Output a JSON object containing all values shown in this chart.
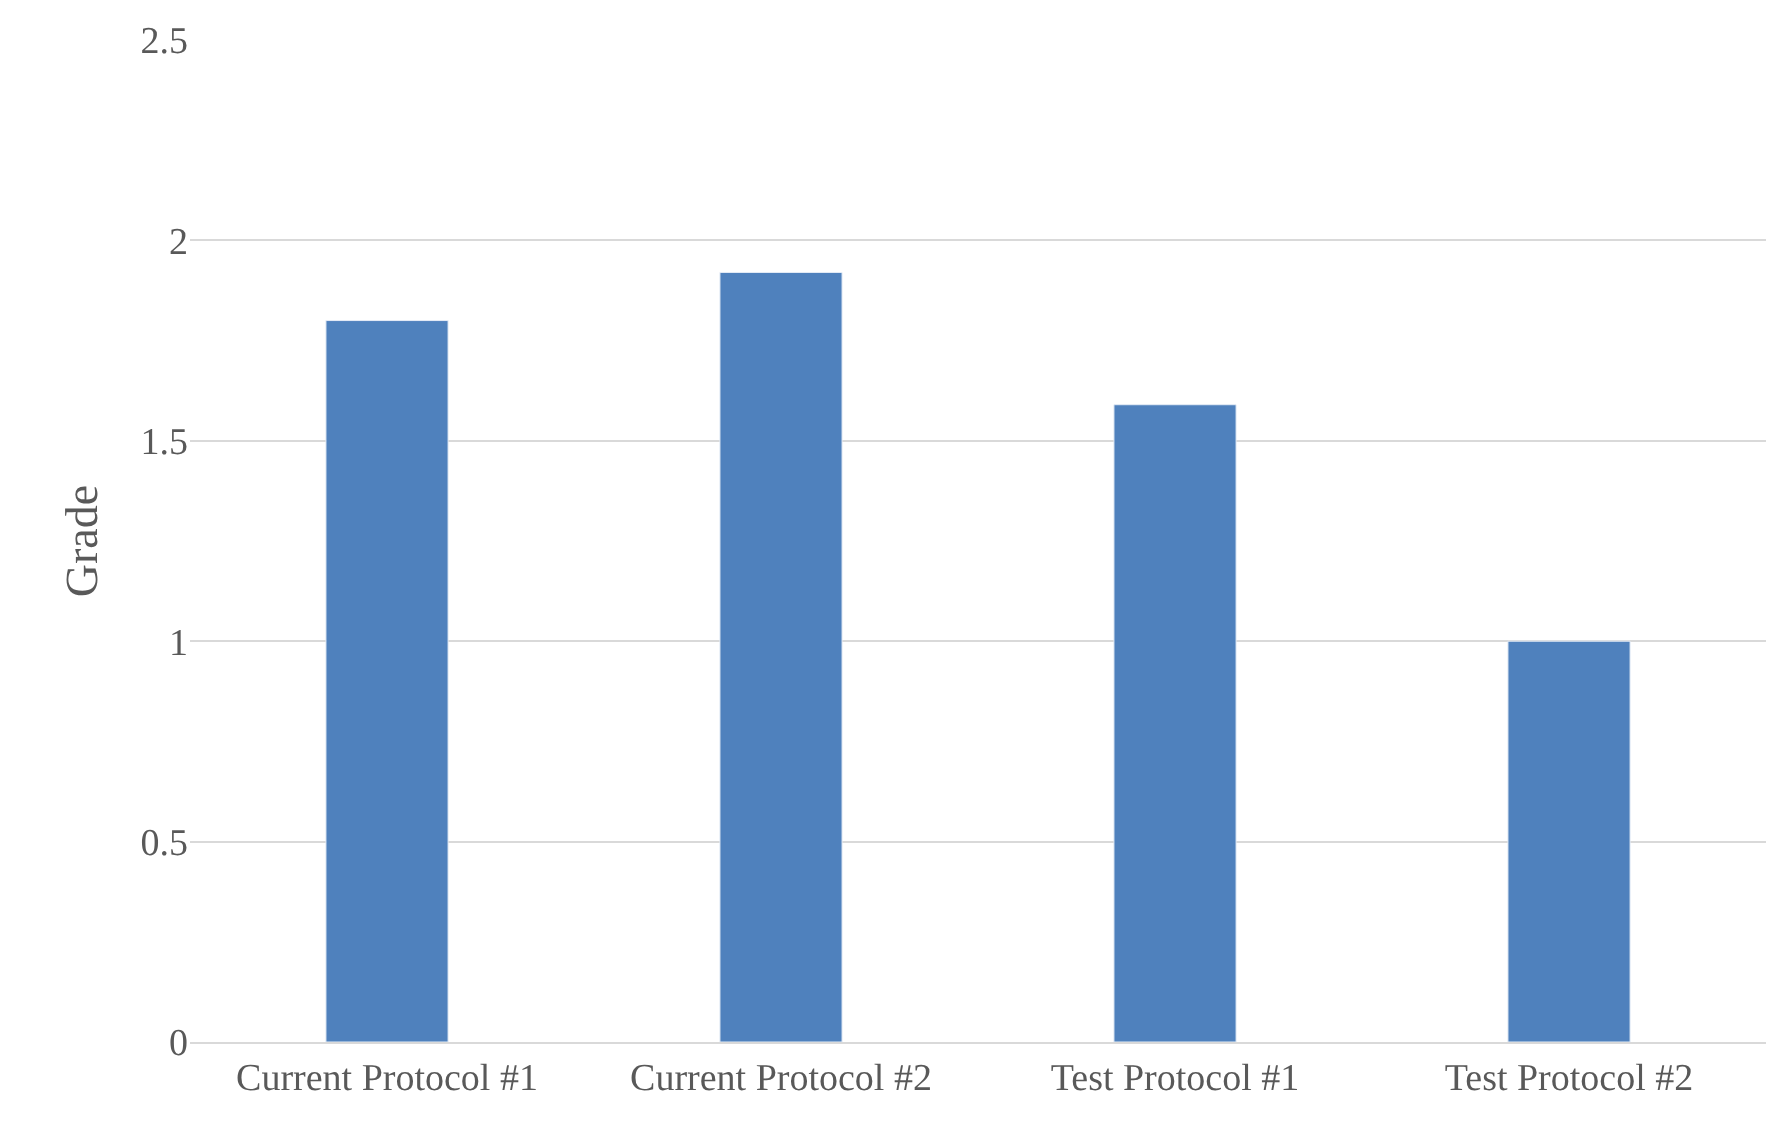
{
  "chart_data": {
    "type": "bar",
    "ylabel": "Grade",
    "categories": [
      "Current Protocol #1",
      "Current Protocol #2",
      "Test Protocol #1",
      "Test Protocol #2"
    ],
    "values": [
      1.8,
      1.92,
      1.59,
      1.0
    ],
    "color": "#4f81bd",
    "ylim": [
      0,
      2.5
    ],
    "yticks": [
      0,
      0.5,
      1,
      1.5,
      2,
      2.5
    ],
    "grid": "y",
    "legend": false
  }
}
